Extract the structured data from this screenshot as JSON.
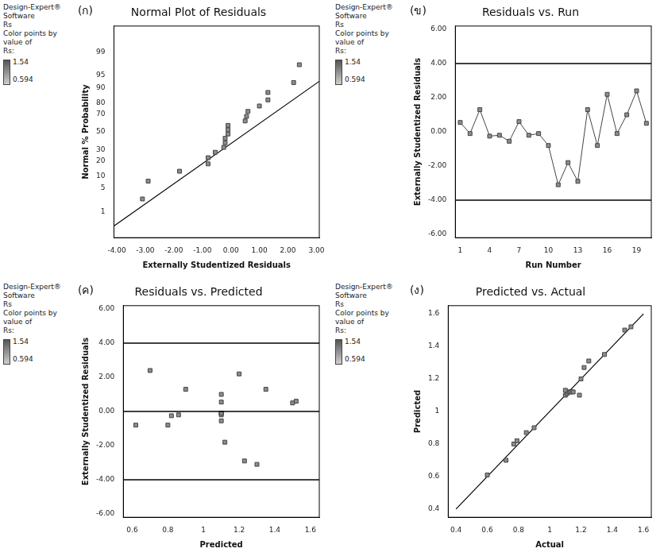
{
  "chart_data": [
    {
      "type": "probability",
      "title": "Normal Plot of Residuals",
      "panel_label": "(ก)",
      "note": [
        "Design-Expert® Software",
        "Rs",
        "Color points by value of",
        "Rs:"
      ],
      "colorbar": {
        "range": [
          0.594,
          1.54
        ]
      },
      "x_label": "Externally Studentized Residuals",
      "y_label": "Normal % Probability",
      "x": [
        -3.1,
        -2.9,
        -1.8,
        -0.8,
        -0.8,
        -0.55,
        -0.25,
        -0.2,
        -0.2,
        -0.1,
        -0.1,
        -0.1,
        0.5,
        0.55,
        0.6,
        1.0,
        1.3,
        1.3,
        2.2,
        2.4
      ],
      "values": [
        2.5,
        7.5,
        12.5,
        17.5,
        22.5,
        27.5,
        32.5,
        37.5,
        42.5,
        47.5,
        52.5,
        57.5,
        62.5,
        67.5,
        72.5,
        77.5,
        82.5,
        87.5,
        92.5,
        97.5
      ],
      "fit_line": {
        "x": [
          -4.1,
          3.1
        ],
        "values": [
          0.3,
          93
        ]
      },
      "xlim": [
        -4.1,
        3.1
      ],
      "xticks": [
        {
          "value": -4,
          "label": "-4.00"
        },
        {
          "value": -3,
          "label": "-3.00"
        },
        {
          "value": -2,
          "label": "-2.00"
        },
        {
          "value": -1,
          "label": "-1.00"
        },
        {
          "value": 0,
          "label": "0.00"
        },
        {
          "value": 1,
          "label": "1.00"
        },
        {
          "value": 2,
          "label": "2.00"
        },
        {
          "value": 3,
          "label": "3.00"
        }
      ],
      "ylim": [
        0.1,
        99.9
      ],
      "yticks": [
        1,
        5,
        10,
        20,
        30,
        50,
        70,
        80,
        90,
        95,
        99
      ],
      "marker": "square",
      "color": "#8c8c8c",
      "grid": false
    },
    {
      "type": "line",
      "title": "Residuals vs. Run",
      "panel_label": "(ข)",
      "note": [
        "Design-Expert® Software",
        "Rs",
        "Color points by value of",
        "Rs:"
      ],
      "colorbar": {
        "range": [
          0.594,
          1.54
        ]
      },
      "x_label": "Run Number",
      "y_label": "Externally Studentized Residuals",
      "x": [
        1,
        2,
        3,
        4,
        5,
        6,
        7,
        8,
        9,
        10,
        11,
        12,
        13,
        14,
        15,
        16,
        17,
        18,
        19,
        20
      ],
      "values": [
        0.55,
        -0.1,
        1.3,
        -0.25,
        -0.2,
        -0.55,
        0.6,
        -0.2,
        -0.1,
        -0.8,
        -3.1,
        -1.8,
        -2.9,
        1.3,
        -0.8,
        2.2,
        -0.1,
        1.0,
        2.4,
        0.5
      ],
      "reference_lines": [
        -4,
        4
      ],
      "xlim": [
        0.5,
        20.5
      ],
      "xticks": [
        1,
        4,
        7,
        10,
        13,
        16,
        19
      ],
      "ylim": [
        -6.2,
        6.2
      ],
      "yticks": [
        {
          "value": -6,
          "label": "-6.00"
        },
        {
          "value": -4,
          "label": "-4.00"
        },
        {
          "value": -2,
          "label": "-2.00"
        },
        {
          "value": 0,
          "label": "0.00"
        },
        {
          "value": 2,
          "label": "2.00"
        },
        {
          "value": 4,
          "label": "4.00"
        },
        {
          "value": 6,
          "label": "6.00"
        }
      ],
      "marker": "square",
      "color": "#8c8c8c",
      "grid": false
    },
    {
      "type": "scatter",
      "title": "Residuals vs. Predicted",
      "panel_label": "(ค)",
      "note": [
        "Design-Expert® Software",
        "Rs",
        "Color points by value of",
        "Rs:"
      ],
      "colorbar": {
        "range": [
          0.594,
          1.54
        ]
      },
      "x_label": "Predicted",
      "y_label": "Externally Studentized Residuals",
      "x": [
        0.62,
        0.7,
        0.8,
        0.82,
        0.86,
        0.9,
        1.1,
        1.1,
        1.1,
        1.1,
        1.1,
        1.1,
        1.12,
        1.2,
        1.23,
        1.3,
        1.35,
        1.5,
        1.52,
        1.1
      ],
      "values": [
        -0.8,
        2.4,
        -0.8,
        -0.25,
        -0.2,
        1.3,
        1.0,
        0.55,
        -0.1,
        -0.1,
        -0.55,
        -0.2,
        -1.8,
        2.2,
        -2.9,
        -3.1,
        1.3,
        0.5,
        0.6,
        -0.1
      ],
      "reference_lines": [
        -4,
        0,
        4
      ],
      "xlim": [
        0.55,
        1.65
      ],
      "xticks": [
        0.6,
        0.8,
        1,
        1.2,
        1.4,
        1.6
      ],
      "ylim": [
        -6.2,
        6.2
      ],
      "yticks": [
        {
          "value": -6,
          "label": "-6.00"
        },
        {
          "value": -4,
          "label": "-4.00"
        },
        {
          "value": -2,
          "label": "-2.00"
        },
        {
          "value": 0,
          "label": "0.00"
        },
        {
          "value": 2,
          "label": "2.00"
        },
        {
          "value": 4,
          "label": "4.00"
        },
        {
          "value": 6,
          "label": "6.00"
        }
      ],
      "marker": "square",
      "color": "#8c8c8c",
      "grid": false
    },
    {
      "type": "scatter",
      "title": "Predicted vs. Actual",
      "panel_label": "(ง)",
      "note": [
        "Design-Expert® Software",
        "Rs",
        "Color points by value of",
        "Rs:"
      ],
      "colorbar": {
        "range": [
          0.594,
          1.54
        ]
      },
      "x_label": "Actual",
      "y_label": "Predicted",
      "x": [
        0.6,
        0.72,
        0.77,
        0.79,
        0.85,
        0.9,
        1.1,
        1.11,
        1.12,
        1.13,
        1.14,
        1.15,
        1.19,
        1.2,
        1.25,
        1.35,
        1.48,
        1.52,
        1.1,
        1.22
      ],
      "values": [
        0.61,
        0.7,
        0.8,
        0.82,
        0.87,
        0.9,
        1.1,
        1.11,
        1.12,
        1.12,
        1.12,
        1.12,
        1.1,
        1.2,
        1.31,
        1.35,
        1.5,
        1.52,
        1.13,
        1.27
      ],
      "fit_line": {
        "x": [
          0.4,
          1.6
        ],
        "values": [
          0.4,
          1.6
        ]
      },
      "xlim": [
        0.35,
        1.65
      ],
      "xticks": [
        0.4,
        0.6,
        0.8,
        1,
        1.2,
        1.4,
        1.6
      ],
      "ylim": [
        0.35,
        1.65
      ],
      "yticks": [
        0.4,
        0.6,
        0.8,
        1,
        1.2,
        1.4,
        1.6
      ],
      "marker": "square",
      "color": "#8c8c8c",
      "grid": false
    }
  ]
}
